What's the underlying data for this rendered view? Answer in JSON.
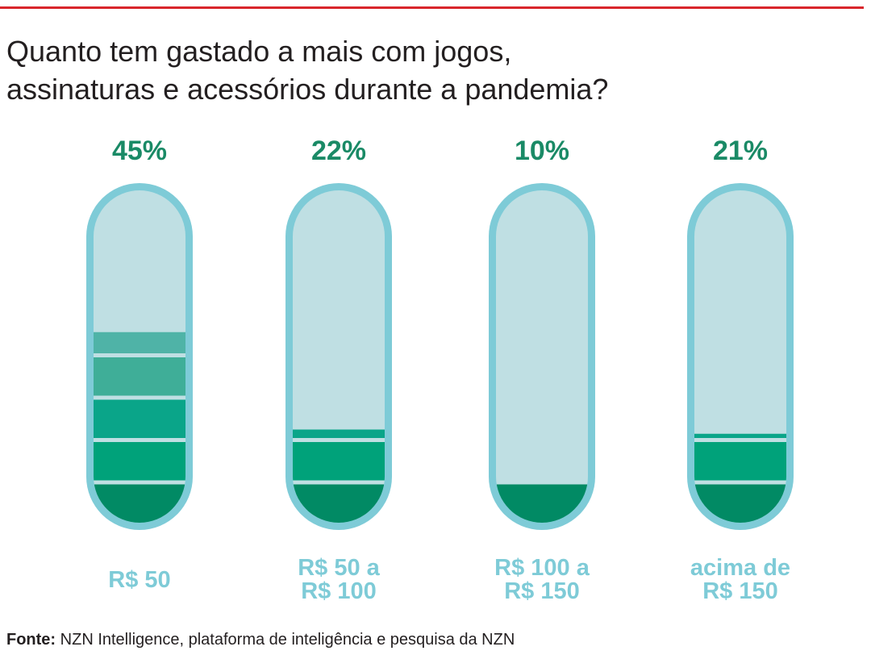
{
  "header": {
    "title_line1": "Quanto tem gastado a mais com jogos,",
    "title_line2": "assinaturas e acessórios durante a pandemia?"
  },
  "source": {
    "label": "Fonte:",
    "text": "NZN Intelligence, plataforma de inteligência e pesquisa da NZN"
  },
  "colors": {
    "accent_rule": "#d9262c",
    "pill_outline": "#7ecbd7",
    "pill_empty": "#bfdfe3",
    "percent_text": "#1a8a66",
    "category_text": "#7ecbd7",
    "band_colors": [
      "#018a64",
      "#00a27a",
      "#0aa589",
      "#3fae98",
      "#4fb3a7",
      "#60b9bc"
    ]
  },
  "chart_data": {
    "type": "bar",
    "categories": [
      [
        "R$ 50"
      ],
      [
        "R$ 50 a",
        "R$ 100"
      ],
      [
        "R$ 100 a",
        "R$ 150"
      ],
      [
        "acima de",
        "R$ 150"
      ]
    ],
    "values": [
      45,
      22,
      10,
      21
    ],
    "value_labels": [
      "45%",
      "22%",
      "10%",
      "21%"
    ],
    "ylim": [
      0,
      100
    ],
    "title": "Quanto tem gastado a mais com jogos, assinaturas e acessórios durante a pandemia?",
    "xlabel": "",
    "ylabel": "",
    "grid": false,
    "legend": "none"
  }
}
